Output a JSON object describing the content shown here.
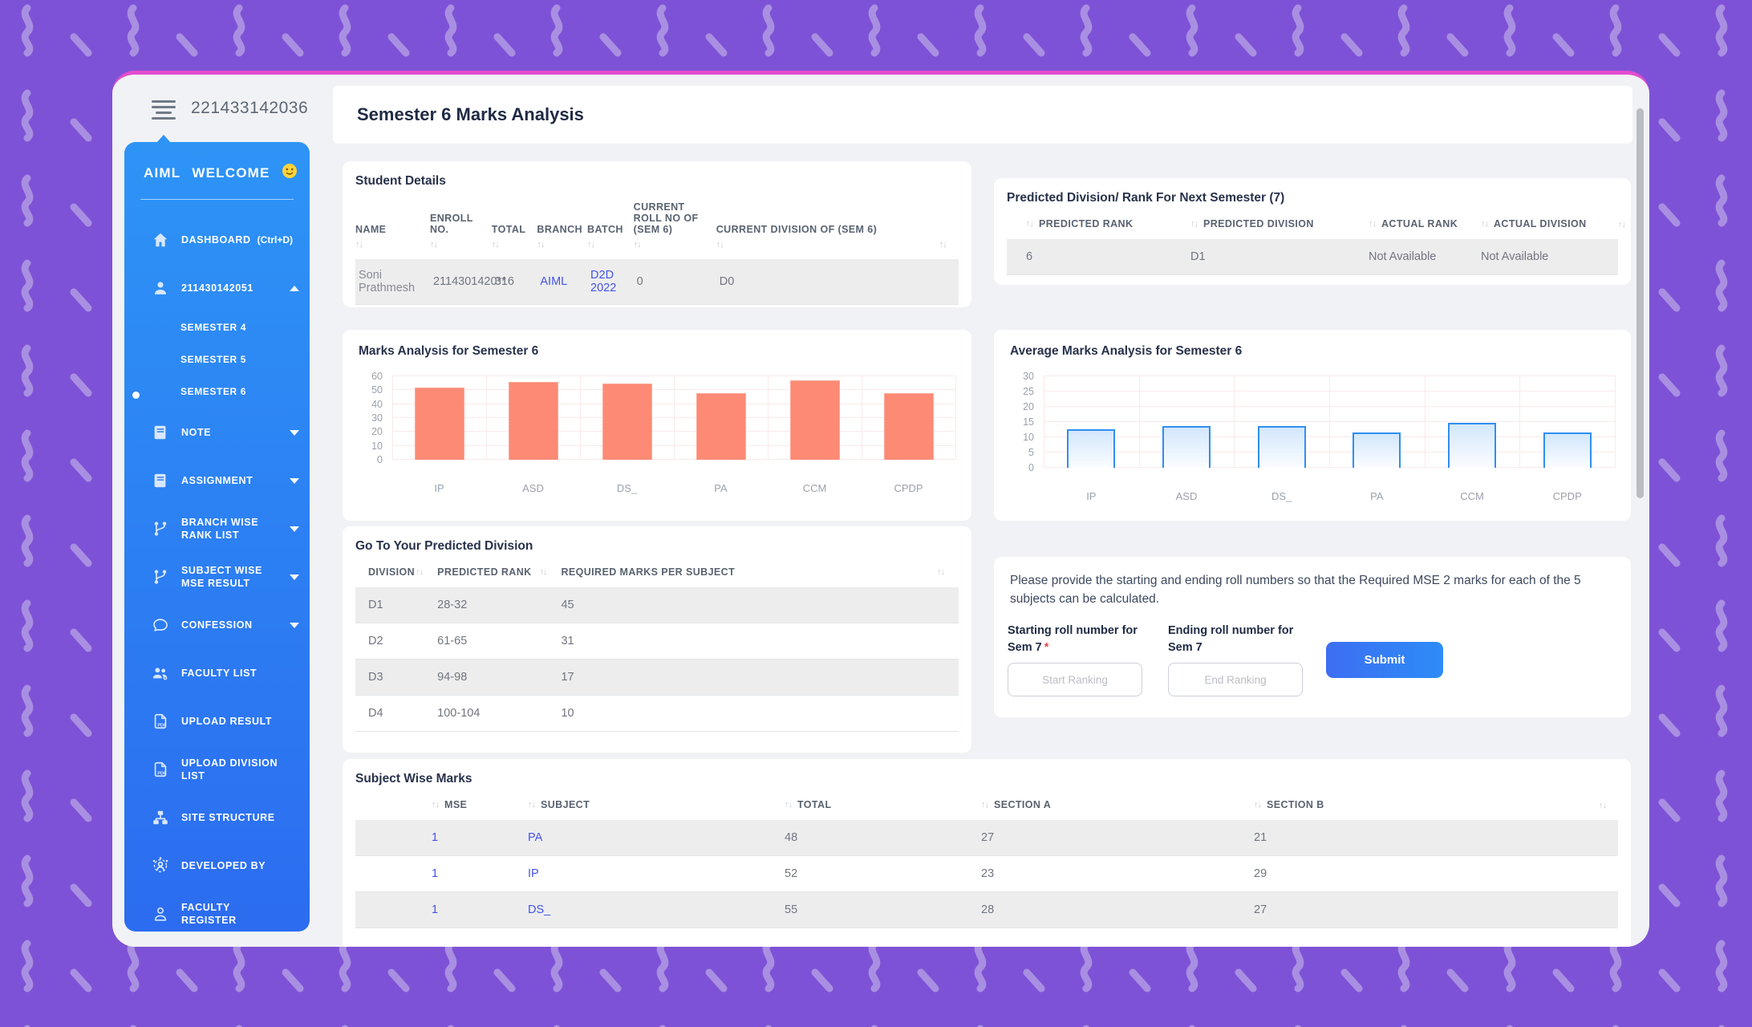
{
  "app": {
    "header_number": "221433142036",
    "page_title": "Semester 6 Marks Analysis"
  },
  "icons": {
    "sort": "↑↓"
  },
  "sidebar": {
    "brand": "AIML",
    "welcome": "WELCOME",
    "emoji": "slightly-smiling-face",
    "items": [
      {
        "label": "DASHBOARD",
        "shortcut": "(Ctrl+D)",
        "icon": "home"
      },
      {
        "label": "211430142051",
        "icon": "person",
        "caret": "up"
      },
      {
        "label": "SEMESTER 4",
        "sub": true
      },
      {
        "label": "SEMESTER 5",
        "sub": true
      },
      {
        "label": "SEMESTER 6",
        "sub": true,
        "active": true
      },
      {
        "label": "NOTE",
        "icon": "book",
        "caret": "down"
      },
      {
        "label": "ASSIGNMENT",
        "icon": "book",
        "caret": "down"
      },
      {
        "label": "BRANCH WISE RANK LIST",
        "icon": "branch",
        "caret": "down"
      },
      {
        "label": "SUBJECT WISE MSE RESULT",
        "icon": "branch",
        "caret": "down"
      },
      {
        "label": "CONFESSION",
        "icon": "chat",
        "caret": "down"
      },
      {
        "label": "FACULTY LIST",
        "icon": "people"
      },
      {
        "label": "UPLOAD RESULT",
        "icon": "pdf"
      },
      {
        "label": "UPLOAD DIVISION LIST",
        "icon": "pdf"
      },
      {
        "label": "SITE STRUCTURE",
        "icon": "sitemap"
      },
      {
        "label": "DEVELOPED BY",
        "icon": "developer"
      },
      {
        "label": "FACULTY REGISTER",
        "icon": "person-outline"
      }
    ]
  },
  "student_details": {
    "title": "Student Details",
    "columns": [
      "NAME",
      "ENROLL NO.",
      "TOTAL",
      "BRANCH",
      "BATCH",
      "CURRENT ROLL NO OF (SEM 6)",
      "CURRENT DIVISION OF (SEM 6)"
    ],
    "rows": [
      [
        "Soni Prathmesh",
        "2114301420**",
        "316",
        "AIML",
        "D2D 2022",
        "0",
        "D0"
      ]
    ]
  },
  "predicted_next": {
    "title": "Predicted Division/ Rank For Next Semester (7)",
    "columns": [
      "PREDICTED RANK",
      "PREDICTED DIVISION",
      "ACTUAL RANK",
      "ACTUAL DIVISION"
    ],
    "rows": [
      [
        "6",
        "D1",
        "Not Available",
        "Not Available"
      ]
    ]
  },
  "go_to": {
    "title": "Go To Your Predicted Division",
    "columns": [
      "DIVISION",
      "PREDICTED RANK",
      "REQUIRED MARKS PER SUBJECT"
    ],
    "rows": [
      [
        "D1",
        "28-32",
        "45"
      ],
      [
        "D2",
        "61-65",
        "31"
      ],
      [
        "D3",
        "94-98",
        "17"
      ],
      [
        "D4",
        "100-104",
        "10"
      ]
    ]
  },
  "subject_wise": {
    "title": "Subject Wise Marks",
    "columns": [
      "MSE",
      "SUBJECT",
      "TOTAL",
      "SECTION A",
      "SECTION B"
    ],
    "rows": [
      [
        "1",
        "PA",
        "48",
        "27",
        "21"
      ],
      [
        "1",
        "IP",
        "52",
        "23",
        "29"
      ],
      [
        "1",
        "DS_",
        "55",
        "28",
        "27"
      ]
    ]
  },
  "form": {
    "description": "Please provide the starting and ending roll numbers so that the Required MSE 2 marks for each of the 5 subjects can be calculated.",
    "start_label": "Starting roll number for Sem 7",
    "start_required": "*",
    "end_label": "Ending roll number for Sem 7",
    "start_placeholder": "Start Ranking",
    "end_placeholder": "End Ranking",
    "submit_label": "Submit"
  },
  "chart_data": [
    {
      "type": "bar",
      "title": "Marks Analysis for Semester 6",
      "categories": [
        "IP",
        "ASD",
        "DS_",
        "PA",
        "CCM",
        "CPDP"
      ],
      "values": [
        52,
        56,
        55,
        48,
        57,
        48
      ],
      "ylim": [
        0,
        60
      ],
      "yticks": [
        0,
        10,
        20,
        30,
        40,
        50,
        60
      ],
      "xlabel": "",
      "ylabel": "",
      "grid": true,
      "legend": false,
      "bar_color": "#fc8a74"
    },
    {
      "type": "bar",
      "title": "Average Marks Analysis for Semester 6",
      "categories": [
        "IP",
        "ASD",
        "DS_",
        "PA",
        "CCM",
        "CPDP"
      ],
      "values": [
        12.7,
        13.8,
        13.7,
        11.7,
        14.7,
        11.7
      ],
      "ylim": [
        0,
        30
      ],
      "yticks": [
        0,
        5,
        10,
        15,
        20,
        25,
        30
      ],
      "xlabel": "",
      "ylabel": "",
      "grid": true,
      "legend": false,
      "bar_color": "#2f8ef3"
    }
  ],
  "colors": {
    "background": "#7e52d6",
    "pattern": "#a98fe2",
    "accent_top": "#e24ccf",
    "sidebar_top": "#2d94f6",
    "sidebar_bottom": "#2c6cf0",
    "link": "#4353e8",
    "bar_salmon": "#fc8a74",
    "bar_blue_border": "#2f8ef3",
    "submit_gradient_start": "#3d6ef2",
    "submit_gradient_end": "#2d8cf7"
  }
}
